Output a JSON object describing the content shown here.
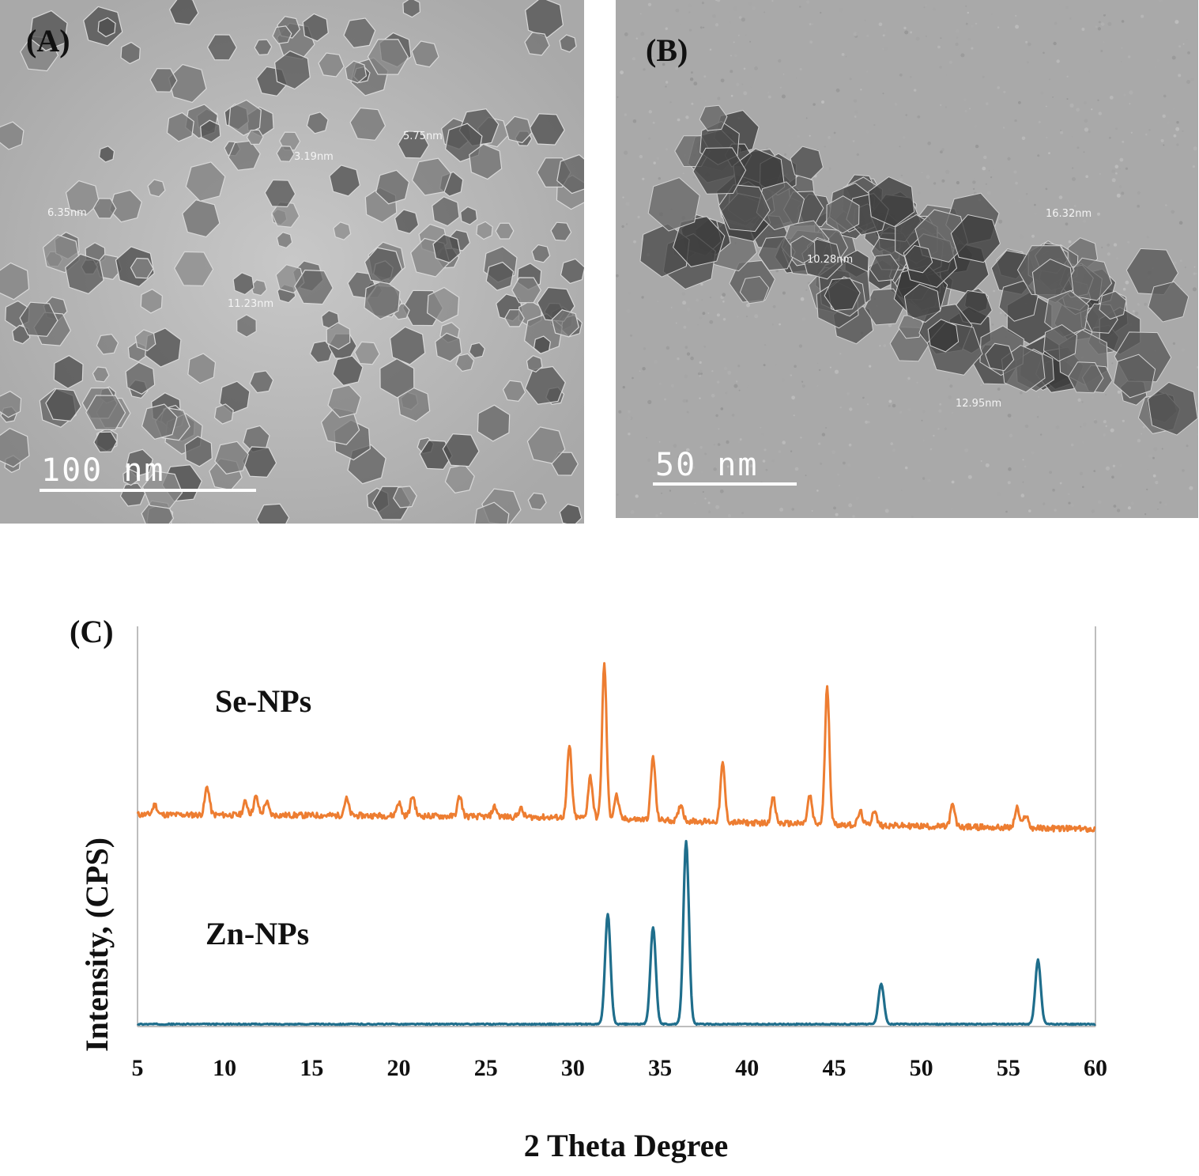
{
  "panels": {
    "a": {
      "label": "(A)",
      "scale_label": "100 nm",
      "measurements": [
        "6.35nm",
        "3.19nm",
        "5.75nm",
        "11.23nm"
      ]
    },
    "b": {
      "label": "(B)",
      "scale_label": "50 nm",
      "measurements": [
        "16.32nm",
        "10.28nm",
        "12.95nm"
      ]
    }
  },
  "chart_data": {
    "type": "line",
    "panel_label": "(C)",
    "xlabel": "2 Theta Degree",
    "ylabel": "Intensity, (CPS)",
    "xlim": [
      5,
      60
    ],
    "xticks": [
      5,
      10,
      15,
      20,
      25,
      30,
      35,
      40,
      45,
      50,
      55,
      60
    ],
    "yticks_shown": false,
    "grid": false,
    "series": [
      {
        "name": "Se-NPs",
        "color": "#ed7d31",
        "baseline": [
          [
            5,
            1.0
          ],
          [
            20,
            0.98
          ],
          [
            30,
            0.95
          ],
          [
            40,
            0.86
          ],
          [
            50,
            0.8
          ],
          [
            60,
            0.75
          ]
        ],
        "peaks": [
          [
            6.0,
            0.06
          ],
          [
            9.0,
            0.17
          ],
          [
            11.2,
            0.08
          ],
          [
            11.8,
            0.11
          ],
          [
            12.4,
            0.08
          ],
          [
            17.0,
            0.1
          ],
          [
            20.0,
            0.08
          ],
          [
            20.8,
            0.12
          ],
          [
            23.5,
            0.12
          ],
          [
            25.5,
            0.06
          ],
          [
            27.0,
            0.05
          ],
          [
            29.8,
            0.43
          ],
          [
            31.0,
            0.25
          ],
          [
            31.8,
            0.93
          ],
          [
            32.5,
            0.14
          ],
          [
            34.6,
            0.38
          ],
          [
            36.2,
            0.1
          ],
          [
            38.6,
            0.35
          ],
          [
            41.5,
            0.15
          ],
          [
            43.6,
            0.17
          ],
          [
            44.6,
            0.83
          ],
          [
            46.5,
            0.08
          ],
          [
            47.3,
            0.09
          ],
          [
            51.8,
            0.13
          ],
          [
            55.5,
            0.12
          ],
          [
            56.0,
            0.08
          ]
        ]
      },
      {
        "name": "Zn-NPs",
        "color": "#1f6e8c",
        "baseline": [
          [
            5,
            0.0
          ],
          [
            60,
            0.0
          ]
        ],
        "peaks": [
          [
            32.0,
            0.6
          ],
          [
            34.6,
            0.53
          ],
          [
            36.5,
            1.0
          ],
          [
            47.7,
            0.22
          ],
          [
            56.7,
            0.35
          ]
        ]
      }
    ]
  }
}
